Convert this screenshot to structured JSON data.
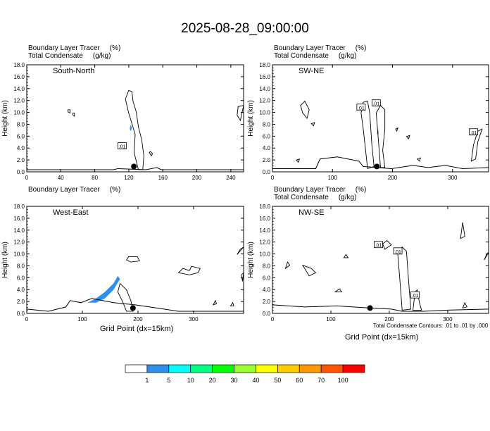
{
  "figure": {
    "title": "2025-08-28_09:00:00",
    "contour_note": "Total Condensate Contours: .01 to .01 by .000"
  },
  "colors": {
    "tracer_shade": "#2f8fef",
    "contour": "#000000",
    "colorbar": [
      "#ffffff",
      "#2f8fef",
      "#00ffff",
      "#00ff80",
      "#00ff00",
      "#99ff33",
      "#ffff00",
      "#ffcc00",
      "#ff9900",
      "#ff5500",
      "#ff0000"
    ]
  },
  "chart_data": [
    {
      "type": "contour",
      "panel_title": "South-North",
      "line1": "Boundary Layer Tracer",
      "line1_units": "(%)",
      "line2": "Total Condensate",
      "line2_units": "(g/kg)",
      "ylabel": "Height (km)",
      "xlabel": "",
      "xlim": [
        0,
        255
      ],
      "ylim": [
        0,
        18
      ],
      "xticks": [
        "0",
        "40",
        "80",
        "120",
        "160",
        "200",
        "240"
      ],
      "yticks": [
        "0.0",
        "2.0",
        "4.0",
        "6.0",
        "8.0",
        "10.0",
        "12.0",
        "14.0",
        "16.0",
        "18.0"
      ],
      "contour_labels": [
        ".01"
      ],
      "marker": {
        "x": 126,
        "y": 0.9
      }
    },
    {
      "type": "contour",
      "panel_title": "SW-NE",
      "line1": "Boundary Layer Tracer",
      "line1_units": "(%)",
      "line2": "Total Condensate",
      "line2_units": "(g/kg)",
      "ylabel": "Height (km)",
      "xlabel": "",
      "xlim": [
        0,
        360
      ],
      "ylim": [
        0,
        18
      ],
      "xticks": [
        "0",
        "100",
        "200",
        "300"
      ],
      "yticks": [
        "0.0",
        "2.0",
        "4.0",
        "6.0",
        "8.0",
        "10.0",
        "12.0",
        "14.0",
        "16.0",
        "18.0"
      ],
      "contour_labels": [
        ".01",
        ".01",
        ".01"
      ],
      "marker": {
        "x": 174,
        "y": 0.9
      }
    },
    {
      "type": "contour",
      "panel_title": "West-East",
      "line1": "Boundary Layer Tracer",
      "line1_units": "(%)",
      "line2": "",
      "line2_units": "",
      "ylabel": "Height (km)",
      "xlabel": "Grid Point (dx=15km)",
      "xlim": [
        0,
        390
      ],
      "ylim": [
        0,
        18
      ],
      "xticks": [
        "0",
        "100",
        "200",
        "300"
      ],
      "yticks": [
        "0.0",
        "2.0",
        "4.0",
        "6.0",
        "8.0",
        "10.0",
        "12.0",
        "14.0",
        "16.0",
        "18.0"
      ],
      "contour_labels": [],
      "marker": {
        "x": 191,
        "y": 0.9
      }
    },
    {
      "type": "contour",
      "panel_title": "NW-SE",
      "line1": "Boundary Layer Tracer",
      "line1_units": "(%)",
      "line2": "Total Condensate",
      "line2_units": "(g/kg)",
      "ylabel": "Height (km)",
      "xlabel": "Grid Point (dx=15km)",
      "xlim": [
        0,
        370
      ],
      "ylim": [
        0,
        18
      ],
      "xticks": [
        "0",
        "100",
        "200",
        "300"
      ],
      "yticks": [
        "0.0",
        "2.0",
        "4.0",
        "6.0",
        "8.0",
        "10.0",
        "12.0",
        "14.0",
        "16.0",
        "18.0"
      ],
      "contour_labels": [
        ".01",
        ".01",
        ".01"
      ],
      "marker": {
        "x": 167,
        "y": 0.9
      }
    },
    {
      "type": "colorbar",
      "ticks": [
        "1",
        "5",
        "10",
        "20",
        "30",
        "40",
        "50",
        "60",
        "70",
        "100"
      ]
    }
  ]
}
